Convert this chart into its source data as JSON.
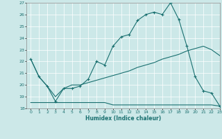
{
  "xlabel": "Humidex (Indice chaleur)",
  "ylabel": "",
  "bg_color": "#cce8e8",
  "grid_color": "#ffffff",
  "line_color": "#1a7070",
  "xlim": [
    -0.5,
    23
  ],
  "ylim": [
    18,
    27
  ],
  "yticks": [
    18,
    19,
    20,
    21,
    22,
    23,
    24,
    25,
    26,
    27
  ],
  "xticks": [
    0,
    1,
    2,
    3,
    4,
    5,
    6,
    7,
    8,
    9,
    10,
    11,
    12,
    13,
    14,
    15,
    16,
    17,
    18,
    19,
    20,
    21,
    22,
    23
  ],
  "line1_x": [
    0,
    1,
    2,
    3,
    4,
    5,
    6,
    7,
    8,
    9,
    10,
    11,
    12,
    13,
    14,
    15,
    16,
    17,
    18,
    19,
    20,
    21,
    22,
    23
  ],
  "line1_y": [
    22.2,
    20.7,
    19.9,
    18.6,
    19.7,
    19.7,
    19.9,
    20.5,
    22.0,
    21.7,
    23.3,
    24.1,
    24.3,
    25.5,
    26.0,
    26.2,
    26.0,
    27.0,
    25.6,
    23.3,
    20.7,
    19.5,
    19.3,
    18.2
  ],
  "line2_x": [
    0,
    1,
    2,
    3,
    4,
    5,
    6,
    7,
    8,
    9,
    10,
    11,
    12,
    13,
    14,
    15,
    16,
    17,
    18,
    19,
    20,
    21,
    22,
    23
  ],
  "line2_y": [
    22.2,
    20.7,
    19.9,
    19.0,
    19.7,
    20.0,
    20.0,
    20.2,
    20.4,
    20.6,
    20.8,
    21.0,
    21.2,
    21.5,
    21.7,
    21.9,
    22.2,
    22.4,
    22.6,
    22.9,
    23.1,
    23.3,
    23.0,
    22.5
  ],
  "line3_x": [
    0,
    1,
    2,
    3,
    4,
    5,
    6,
    7,
    8,
    9,
    10,
    11,
    12,
    13,
    14,
    15,
    16,
    17,
    18,
    19,
    20,
    21,
    22,
    23
  ],
  "line3_y": [
    18.5,
    18.5,
    18.5,
    18.5,
    18.5,
    18.5,
    18.5,
    18.5,
    18.5,
    18.5,
    18.3,
    18.3,
    18.3,
    18.3,
    18.3,
    18.3,
    18.3,
    18.3,
    18.3,
    18.3,
    18.3,
    18.3,
    18.3,
    18.2
  ]
}
